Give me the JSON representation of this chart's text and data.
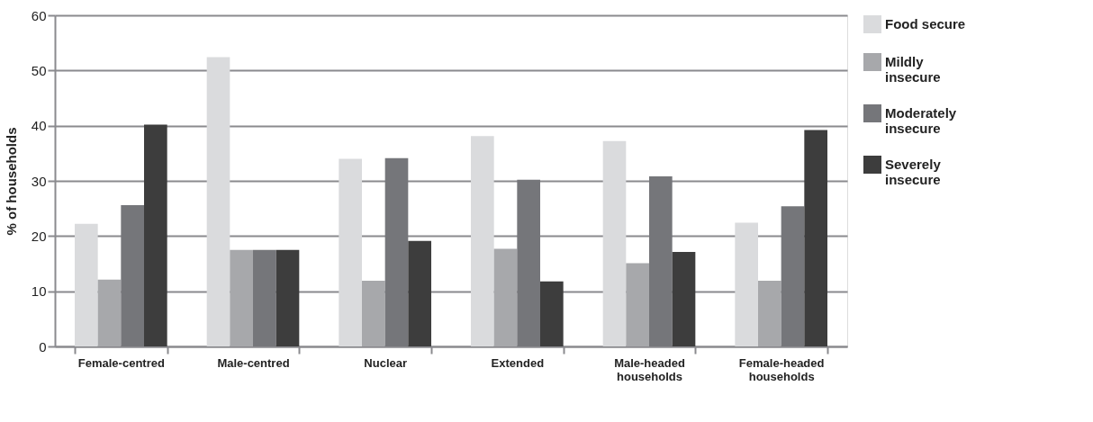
{
  "chart_data": {
    "type": "bar",
    "ylabel": "% of households",
    "categories": [
      "Female-centred",
      "Male-centred",
      "Nuclear",
      "Extended",
      "Male-headed households",
      "Female-headed households"
    ],
    "series": [
      {
        "name": "Food secure",
        "color": "#dadbdd",
        "values": [
          22.2,
          52.4,
          34.0,
          38.1,
          37.2,
          22.4
        ]
      },
      {
        "name": "Mildly insecure",
        "color": "#a7a8ab",
        "values": [
          12.1,
          17.5,
          11.9,
          17.7,
          15.1,
          11.9
        ]
      },
      {
        "name": "Moderately insecure",
        "color": "#75767a",
        "values": [
          25.6,
          17.5,
          34.1,
          30.2,
          30.8,
          25.4
        ]
      },
      {
        "name": "Severely insecure",
        "color": "#3d3d3d",
        "values": [
          40.2,
          17.5,
          19.1,
          11.8,
          17.1,
          39.2
        ]
      }
    ],
    "ylim": [
      0,
      60
    ],
    "yticks": [
      0,
      10,
      20,
      30,
      40,
      50,
      60
    ],
    "grid": "y",
    "legend": "right"
  }
}
